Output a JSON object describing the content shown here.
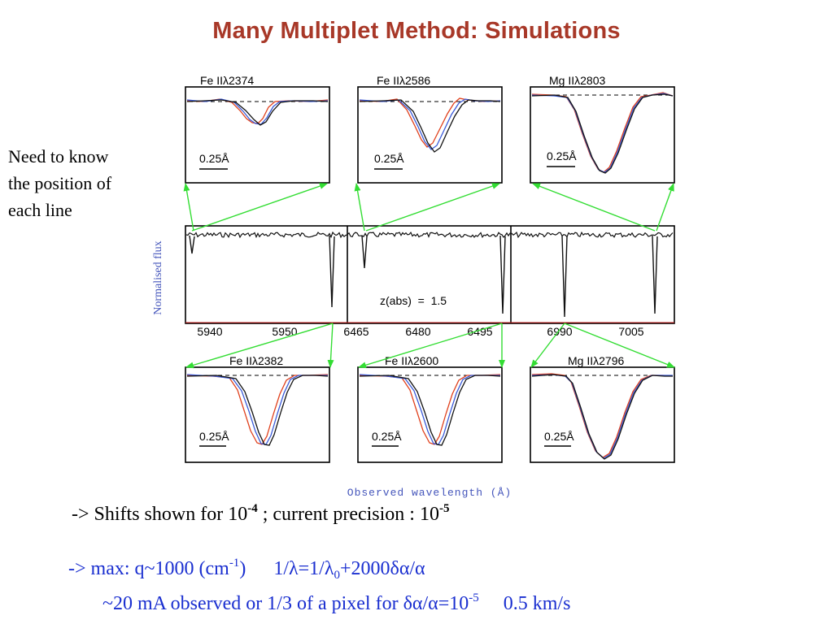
{
  "title": "Many Multiplet Method: Simulations",
  "side_note": {
    "line1": "Need to know",
    "line2": "the position of",
    "line3": "each line"
  },
  "colors": {
    "title": "#a83828",
    "arrows": "#33dd33",
    "text_blue": "#1a2fd0",
    "curve_red": "#e0401c",
    "curve_blue": "#3a5ad8",
    "curve_black": "#111111"
  },
  "figure": {
    "ylabel": "Normalised flux",
    "xlabel": "Observed wavelength (Å)",
    "redshift_label": "z(abs)  =  1.5",
    "scale_label": "0.25Å",
    "top_panels": [
      "Fe IIλ2374",
      "Fe IIλ2586",
      "Mg IIλ2803"
    ],
    "bottom_panels": [
      "Fe IIλ2382",
      "Fe IIλ2600",
      "Mg IIλ2796"
    ],
    "spectrum_segments": [
      {
        "ticks": [
          "5940",
          "5950"
        ]
      },
      {
        "ticks": [
          "6465",
          "6480",
          "6495"
        ]
      },
      {
        "ticks": [
          "6990",
          "7005"
        ]
      }
    ]
  },
  "captions": {
    "line1_a": "-> Shifts shown for 10",
    "line1_exp1": "-4",
    "line1_b": " ;  current precision : 10",
    "line1_exp2": "-5",
    "line2_a": "-> max: q~1000 (cm",
    "line2_exp": "-1",
    "line2_b": ")",
    "line2_c": "1",
    "line2_d": "/λ=1/λ",
    "line2_sub": "0",
    "line2_e": "+2000δα/α",
    "line3_a": "~20 mA observed  or 1/3 of a pixel for δα/α=10",
    "line3_exp": "-5",
    "line3_b": "0.5 km/s"
  }
}
